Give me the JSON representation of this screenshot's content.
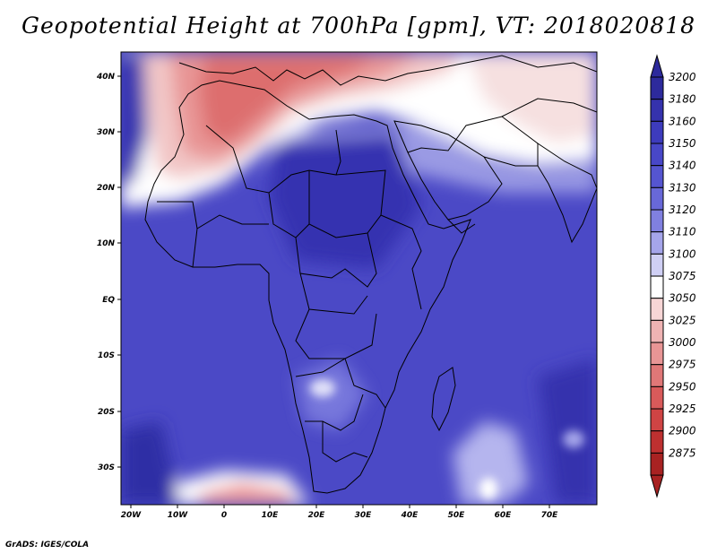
{
  "title": "Geopotential Height at 700hPa [gpm], VT: 2018020818",
  "credit": "GrADS: IGES/COLA",
  "map": {
    "lat_labels": [
      "40N",
      "30N",
      "20N",
      "10N",
      "EQ",
      "10S",
      "20S",
      "30S"
    ],
    "lon_labels": [
      "20W",
      "10W",
      "0",
      "10E",
      "20E",
      "30E",
      "40E",
      "50E",
      "60E",
      "70E"
    ]
  },
  "colorbar": {
    "labels": [
      "3200",
      "3180",
      "3160",
      "3150",
      "3140",
      "3130",
      "3120",
      "3110",
      "3100",
      "3075",
      "3050",
      "3025",
      "3000",
      "2975",
      "2950",
      "2925",
      "2900",
      "2875"
    ],
    "colors": [
      "#2d2a9c",
      "#3532ad",
      "#3d3bbd",
      "#4847c8",
      "#5555d0",
      "#6868d8",
      "#8080e0",
      "#a5a5ea",
      "#cfcff4",
      "#ffffff",
      "#f7d6d6",
      "#efb3b3",
      "#e89595",
      "#e07777",
      "#d95a5a",
      "#cf4444",
      "#be3030",
      "#a82222"
    ]
  }
}
